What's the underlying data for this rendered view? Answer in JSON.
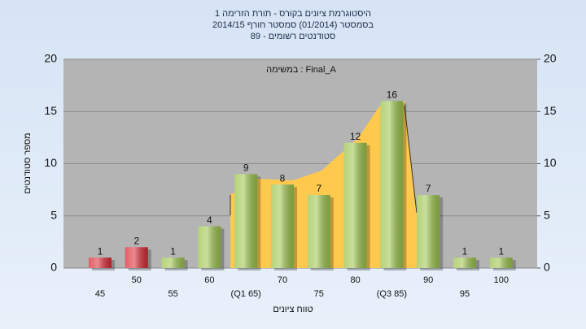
{
  "chart_data": {
    "type": "bar",
    "title": [
      "היסטוגרמת ציונים בקורס - תורת הזרימה 1",
      "בסמסטר  (01/2014)  סמסטר חורף 2014/15",
      "סטודנטים רשומים - 89"
    ],
    "annotation": "במשימה : Final_A",
    "ylabel": "מספר סטודנטים",
    "xlabel": "טווח ציונים",
    "categories": [
      "45",
      "50",
      "55",
      "60",
      "(Q1 65)",
      "70",
      "75",
      "80",
      "(Q3 85)",
      "90",
      "95",
      "100"
    ],
    "values": [
      1,
      2,
      1,
      4,
      9,
      8,
      7,
      12,
      16,
      7,
      1,
      1
    ],
    "colors": [
      "#d92a33",
      "#d92a33",
      "#9cc44c",
      "#9cc44c",
      "#9cc44c",
      "#9cc44c",
      "#9cc44c",
      "#9cc44c",
      "#9cc44c",
      "#9cc44c",
      "#9cc44c",
      "#9cc44c"
    ],
    "ylim": [
      0,
      20
    ],
    "yticks": [
      0,
      5,
      10,
      15,
      20
    ],
    "y2lim": [
      0,
      20
    ],
    "y2ticks": [
      0,
      5,
      10,
      15,
      20
    ],
    "grid": true
  }
}
